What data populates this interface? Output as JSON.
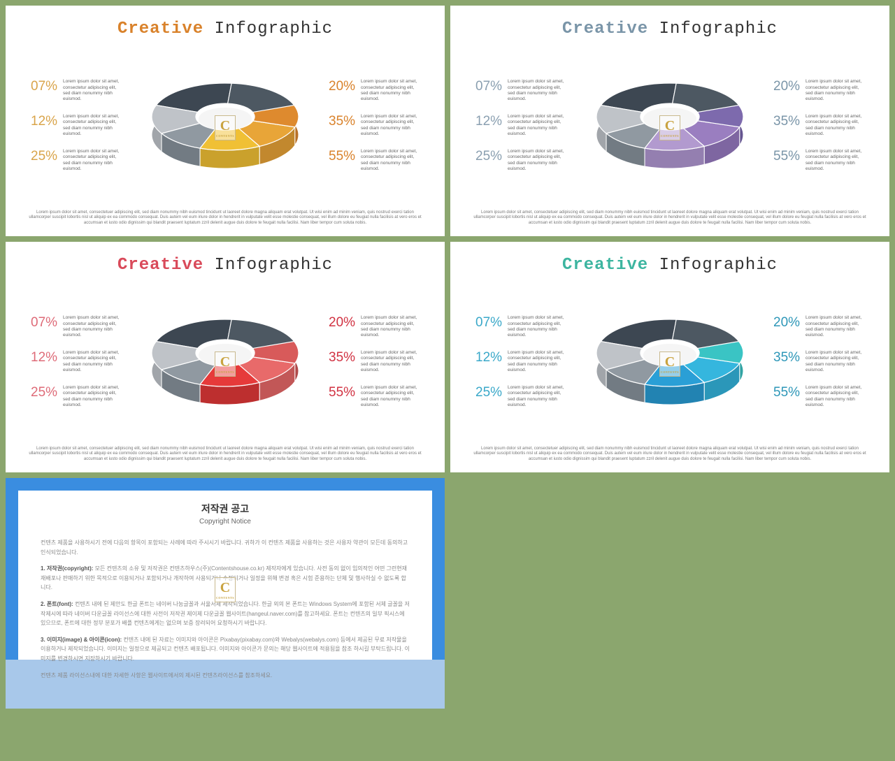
{
  "background_color": "#8ba66e",
  "slide_bg": "#ffffff",
  "title_word1": "Creative",
  "title_word2": "Infographic",
  "stat_desc": "Lorem ipsum dolor sit amet, consectetur adipiscing elit, sed diam nonummy nibh euismod.",
  "footer": "Lorem ipsum dolor sit amet, consectetuer adipiscing elit, sed diam nonummy nibh euismod tincidunt ut laoreet dolore magna aliquam erat volutpat. Ut wisi enim ad minim veniam, quis nostrud exerci tation ullamcorper suscipit lobortis nisl ut aliquip ex ea commodo consequat. Duis autem vel eum iriure dolor in hendrerit in vulputate velit esse molestie consequat, vel illum dolore eu feugiat nulla facilisis at vero eros et accumsan et iusto odio dignissim qui blandit praesent luptatum zzril delenit augue duis dolore te feugait nulla facilisi. Nam liber tempor cum soluta nobis.",
  "left_pcts": [
    "07%",
    "12%",
    "25%"
  ],
  "right_pcts": [
    "20%",
    "35%",
    "55%"
  ],
  "watermark_letter": "C",
  "watermark_sub": "CONTENTS",
  "slides": [
    {
      "accent": "#d9822b",
      "pct_color_left": "#d9a44a",
      "pct_color_right": "#d9822b",
      "donut": {
        "seg_top_dark": "#3d4752",
        "seg_top_dark2": "#4d5862",
        "seg_grey_light": "#bfc3c8",
        "seg_grey_mid": "#9099a1",
        "seg_col1": "#f0c035",
        "seg_col1_side": "#caa12c",
        "seg_col2": "#e8a538",
        "seg_col2_side": "#c2882e",
        "seg_col3": "#de8a2e",
        "seg_col3_side": "#b87027"
      }
    },
    {
      "accent": "#7a95a8",
      "pct_color_left": "#8a9fb0",
      "pct_color_right": "#7a95a8",
      "donut": {
        "seg_top_dark": "#3d4752",
        "seg_top_dark2": "#4d5862",
        "seg_grey_light": "#bfc3c8",
        "seg_grey_mid": "#9099a1",
        "seg_col1": "#b29acf",
        "seg_col1_side": "#947fb0",
        "seg_col2": "#9a7ec0",
        "seg_col2_side": "#7e66a1",
        "seg_col3": "#7d6aad",
        "seg_col3_side": "#655590"
      }
    },
    {
      "accent": "#d94a5a",
      "pct_color_left": "#de6b78",
      "pct_color_right": "#d13242",
      "donut": {
        "seg_top_dark": "#3d4752",
        "seg_top_dark2": "#4d5862",
        "seg_grey_light": "#bfc3c8",
        "seg_grey_mid": "#9099a1",
        "seg_col1": "#e63a3a",
        "seg_col1_side": "#bd2f2f",
        "seg_col2": "#e86a6a",
        "seg_col2_side": "#c25757",
        "seg_col3": "#d85a5a",
        "seg_col3_side": "#b04949"
      }
    },
    {
      "accent": "#3db5a0",
      "pct_color_left": "#3aa8c9",
      "pct_color_right": "#2e97b8",
      "donut": {
        "seg_top_dark": "#3d4752",
        "seg_top_dark2": "#4d5862",
        "seg_grey_light": "#bfc3c8",
        "seg_grey_mid": "#9099a1",
        "seg_col1": "#2a9fd6",
        "seg_col1_side": "#2283b2",
        "seg_col2": "#35b6de",
        "seg_col2_side": "#2b97b9",
        "seg_col3": "#3ac4c4",
        "seg_col3_side": "#30a3a3"
      }
    }
  ],
  "copyright": {
    "border_top_color": "#3a8de0",
    "border_side_color": "#3a8de0",
    "border_bottom_color": "#a8c8ea",
    "title": "저작권 공고",
    "subtitle": "Copyright Notice",
    "intro": "컨텐츠 제품을 사용하시기 전에 다음의 항목이 포함되는 사례에 따라 주시시기 바랍니다. 귀하가 이 컨텐츠 제품을 사용하는 것은 사용자 약관이 모든데 동의하고 인식되었습니다.",
    "items": [
      {
        "label": "1. 저작권(copyright):",
        "body": "모든 컨텐츠의 소유 및 저작권은 컨텐츠하우스(주)(Contentshouse.co.kr) 제작자에게 있습니다. 사전 동의 없이 임의적인 어떤 그런현재 재배포나 판매하기 위한 목적으로 이용되거나 포함되거나 개작하여 사용되거나 수정되거나 일정을 위해 변경 혹은 시험 준용하는 단체 및 행사하실 수 없도록 합니다."
      },
      {
        "label": "2. 폰트(font):",
        "body": "컨텐츠 내에 된 제안도 한글 폰트는 네이버 나눔글꼴과 서울서체 제작되었습니다. 한글 외의 본 폰트는 Windows System에 포함된 서체 글꼴을 저작제시에 따라 네이버 다운글꼴 라이선스에 대한 사전이 저작권 제이제 다운글꼴 웹사이트(hangeul.naver.com)를 참고하세요. 폰트는 컨텐츠의 일부 픽시스에 있으므로, 폰트에 대한 정부 분포가 배플 컨텐츠에게는 없으며 보증 장려되어 요청하시기 바랍니다."
      },
      {
        "label": "3. 이미지(image) & 아이콘(icon):",
        "body": "컨텐츠 내에 된 자료는 이미지와 아이콘은 Pixabay(pixabay.com)와 Webalys(webalys.com) 등에서 제공된 무료 저작물을 이용하거나 제작되었습니다. 이미지는 일정으로 제공되고 컨텐츠 배포됩니다. 이미지와 아이콘가 문의는 해당 웹사이트에 적용됨을 참조 하시길 부탁드립니다. 이미지를 변경하시면 지장하시기 바랍니다."
      }
    ],
    "outro": "컨텐츠 제품 라이선스내에 대한 자세한 사항은 웹사이트에서의 제시된 컨텐츠라이선스를 참조하세요."
  }
}
